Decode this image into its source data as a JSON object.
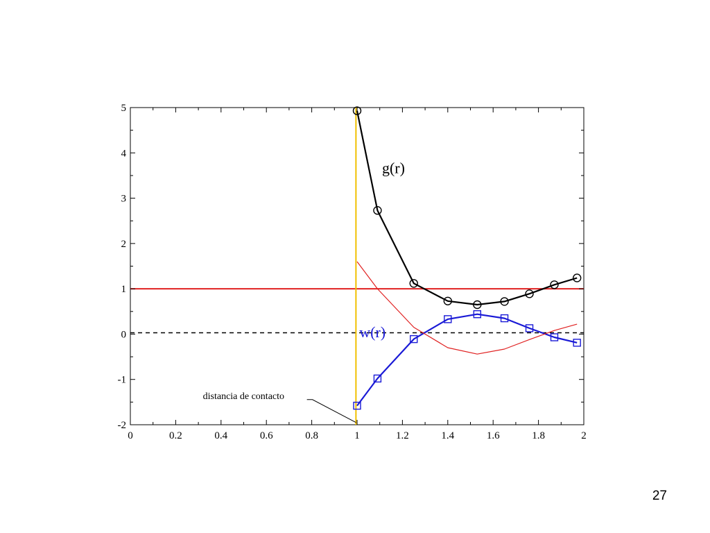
{
  "slide": {
    "page_number": "27"
  },
  "chart_data": {
    "type": "line",
    "xlim": [
      0,
      2
    ],
    "ylim": [
      -2,
      5
    ],
    "x_ticks": [
      0,
      0.2,
      0.4,
      0.6,
      0.8,
      1,
      1.2,
      1.4,
      1.6,
      1.8,
      2
    ],
    "x_tick_labels": [
      "0",
      "0.2",
      "0.4",
      "0.6",
      "0.8",
      "1",
      "1.2",
      "1.4",
      "1.6",
      "1.8",
      "2"
    ],
    "y_ticks": [
      -2,
      -1,
      0,
      1,
      2,
      3,
      4,
      5
    ],
    "y_tick_labels": [
      "-2",
      "-1",
      "0",
      "1",
      "2",
      "3",
      "4",
      "5"
    ],
    "grid": false,
    "series": [
      {
        "name": "g(r)",
        "color": "#000000",
        "marker": "circle",
        "x": [
          1.0,
          1.09,
          1.25,
          1.4,
          1.53,
          1.65,
          1.76,
          1.87,
          1.97
        ],
        "y": [
          4.93,
          2.73,
          1.12,
          0.73,
          0.65,
          0.72,
          0.89,
          1.09,
          1.24
        ]
      },
      {
        "name": "w(r)",
        "color": "#1a1ad6",
        "marker": "square",
        "x": [
          1.0,
          1.09,
          1.25,
          1.4,
          1.53,
          1.65,
          1.76,
          1.87,
          1.97
        ],
        "y": [
          -1.58,
          -0.98,
          -0.11,
          0.33,
          0.44,
          0.35,
          0.13,
          -0.07,
          -0.19
        ]
      },
      {
        "color": "#e02020",
        "marker": "none",
        "x": [
          1.0,
          1.09,
          1.25,
          1.4,
          1.53,
          1.65,
          1.76,
          1.87,
          1.97
        ],
        "y": [
          1.6,
          1.0,
          0.15,
          -0.3,
          -0.44,
          -0.33,
          -0.12,
          0.08,
          0.22
        ]
      }
    ],
    "reference_lines": [
      {
        "orientation": "horizontal",
        "value": 1,
        "color": "#e02020",
        "style": "solid"
      },
      {
        "orientation": "horizontal",
        "value": 0.03,
        "color": "#000000",
        "style": "dashed"
      },
      {
        "orientation": "vertical",
        "value": 0.995,
        "color": "#f0c000",
        "style": "solid"
      }
    ],
    "annotations": [
      {
        "text": "g(r)",
        "x": 1.11,
        "y": 3.55,
        "color": "#000000"
      },
      {
        "text": "w(r)",
        "x": 1.01,
        "y": -0.07,
        "color": "#1a1ad6"
      },
      {
        "text": "distancia de contacto",
        "x": 0.32,
        "y": -1.43,
        "color": "#000000",
        "arrow_to": [
          0.995,
          -1.95
        ]
      }
    ]
  }
}
